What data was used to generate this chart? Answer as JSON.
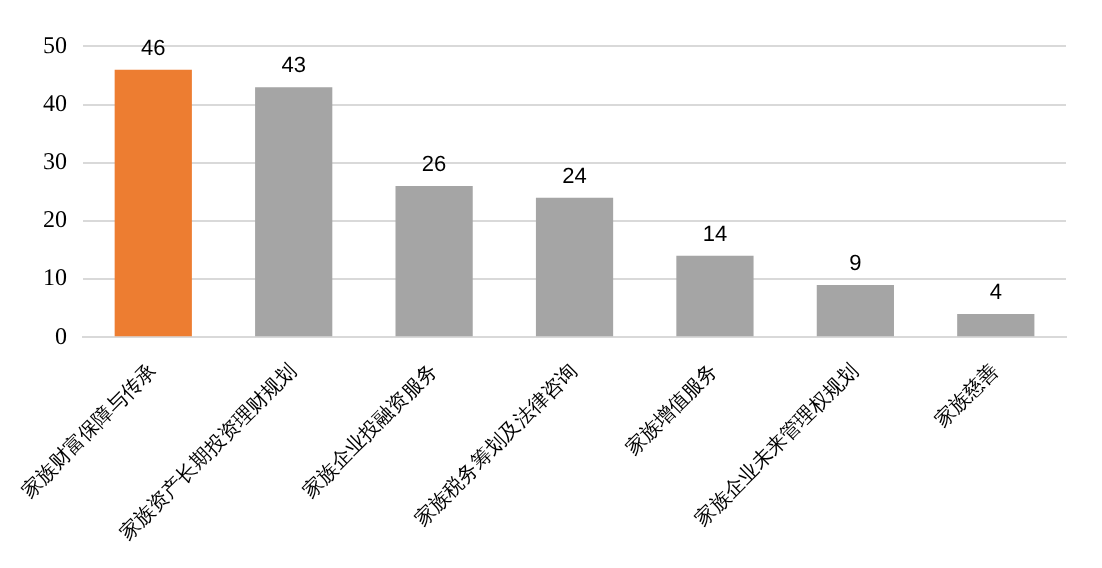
{
  "chart_data": {
    "type": "bar",
    "categories": [
      "家族财富保障与传承",
      "家族资产长期投资理财规划",
      "家族企业投融资服务",
      "家族税务筹划及法律咨询",
      "家族增值服务",
      "家族企业未来管理权规划",
      "家族慈善"
    ],
    "values": [
      46,
      43,
      26,
      24,
      14,
      9,
      4
    ],
    "colors": [
      "#ed7d31",
      "#a5a5a5",
      "#a5a5a5",
      "#a5a5a5",
      "#a5a5a5",
      "#a5a5a5",
      "#a5a5a5"
    ],
    "ylim": [
      0,
      50
    ],
    "yticks": [
      0,
      10,
      20,
      30,
      40,
      50
    ],
    "grid": "y",
    "data_labels": true,
    "legend": false
  }
}
